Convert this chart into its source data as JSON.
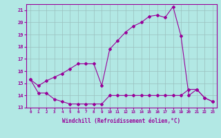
{
  "xlabel": "Windchill (Refroidissement éolien,°C)",
  "hours": [
    0,
    1,
    2,
    3,
    4,
    5,
    6,
    7,
    8,
    9,
    10,
    11,
    12,
    13,
    14,
    15,
    16,
    17,
    18,
    19,
    20,
    21,
    22,
    23
  ],
  "upper_line_x": [
    0,
    1,
    2,
    3,
    4,
    5,
    6,
    7,
    8,
    9,
    10,
    11,
    12,
    13,
    14,
    15,
    16,
    17,
    18,
    19,
    20,
    21,
    22,
    23
  ],
  "upper_line_y": [
    15.3,
    14.8,
    15.2,
    15.5,
    15.8,
    16.2,
    16.6,
    16.6,
    16.6,
    14.8,
    17.8,
    18.5,
    19.2,
    19.7,
    20.0,
    20.5,
    20.6,
    20.4,
    21.3,
    18.9,
    14.0,
    14.5,
    13.8,
    13.5
  ],
  "lower_line_x": [
    0,
    1,
    2,
    3,
    4,
    5,
    6,
    7,
    8,
    9,
    10,
    11,
    12,
    13,
    14,
    15,
    16,
    17,
    18,
    19,
    20,
    21,
    22,
    23
  ],
  "lower_line_y": [
    15.3,
    14.2,
    14.2,
    13.7,
    13.5,
    13.3,
    13.3,
    13.3,
    13.3,
    13.3,
    14.0,
    14.0,
    14.0,
    14.0,
    14.0,
    14.0,
    14.0,
    14.0,
    14.0,
    14.0,
    14.5,
    14.5,
    13.8,
    13.5
  ],
  "line_color": "#990099",
  "bg_color": "#b2e8e4",
  "grid_color": "#9bbfbe",
  "ylim": [
    13,
    21.5
  ],
  "yticks": [
    13,
    14,
    15,
    16,
    17,
    18,
    19,
    20,
    21
  ],
  "xlim": [
    -0.5,
    23.5
  ],
  "xticks": [
    0,
    1,
    2,
    3,
    4,
    5,
    6,
    7,
    8,
    9,
    10,
    11,
    12,
    13,
    14,
    15,
    16,
    17,
    18,
    19,
    20,
    21,
    22,
    23
  ]
}
